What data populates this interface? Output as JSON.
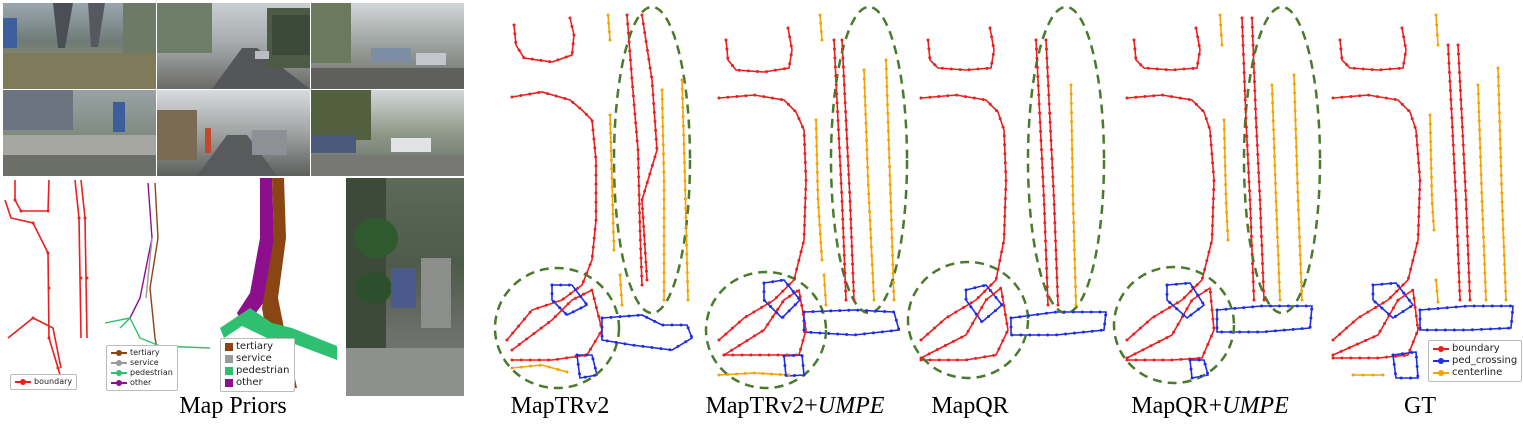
{
  "captions": {
    "map_priors": "Map Priors",
    "maptrv2": "MapTRv2",
    "maptrv2_umpe_base": "MapTRv2+",
    "maptrv2_umpe_italic": "UMPE",
    "mapqr": "MapQR",
    "mapqr_umpe_base": "MapQR+",
    "mapqr_umpe_italic": "UMPE",
    "gt": "GT"
  },
  "prior_legend_boundary": "boundary",
  "road_legend": [
    "tertiary",
    "service",
    "pedestrian",
    "other"
  ],
  "area_legend": [
    "tertiary",
    "service",
    "pedestrian",
    "other"
  ],
  "gt_legend": [
    "boundary",
    "ped_crossing",
    "centerline"
  ],
  "colors": {
    "boundary": "#e8201f",
    "ped_crossing": "#1f2fe0",
    "centerline": "#f5a300",
    "highlight": "#4a7a2c",
    "tertiary": "#8b4513",
    "service": "#9a9a9a",
    "pedestrian": "#2fbf71",
    "other": "#8e0f8e"
  }
}
